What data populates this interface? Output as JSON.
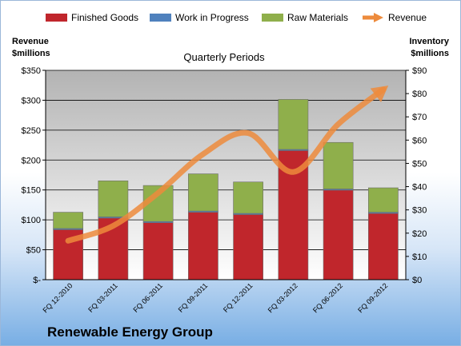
{
  "chart_data": {
    "type": "bar",
    "stacked": true,
    "subtitle": "Quarterly Periods",
    "company": "Renewable Energy Group",
    "left_axis": {
      "label_line1": "Revenue",
      "label_line2": "$millions",
      "ylim": [
        0,
        350
      ],
      "ticks": [
        "$-",
        "$50",
        "$100",
        "$150",
        "$200",
        "$250",
        "$300",
        "$350"
      ]
    },
    "right_axis": {
      "label_line1": "Inventory",
      "label_line2": "$millions",
      "ylim": [
        0,
        90
      ],
      "ticks": [
        "$0",
        "$10",
        "$20",
        "$30",
        "$40",
        "$50",
        "$60",
        "$70",
        "$80",
        "$90"
      ]
    },
    "categories": [
      "FQ 12-2010",
      "FQ 03-2011",
      "FQ 06-2011",
      "FQ 09-2011",
      "FQ 12-2011",
      "FQ 03-2012",
      "FQ 06-2012",
      "FQ 09-2012"
    ],
    "series": [
      {
        "name": "Finished Goods",
        "axis": "right",
        "color": "#c0262c",
        "values": [
          21.5,
          26.5,
          24.5,
          29,
          28,
          55.5,
          38.5,
          28.5
        ]
      },
      {
        "name": "Work in Progress",
        "axis": "right",
        "color": "#4f81bd",
        "values": [
          0.5,
          0.5,
          0.5,
          0.5,
          0.5,
          0.5,
          0.5,
          0.5
        ]
      },
      {
        "name": "Raw Materials",
        "axis": "right",
        "color": "#8faf4b",
        "values": [
          7,
          15.5,
          15.5,
          16,
          13.5,
          21.5,
          20,
          10.5
        ]
      },
      {
        "name": "Revenue",
        "axis": "left",
        "type": "line",
        "color": "#ed8b3c",
        "values": [
          65,
          90,
          145,
          210,
          245,
          180,
          260,
          318
        ]
      }
    ],
    "grid": true,
    "legend": "top"
  }
}
